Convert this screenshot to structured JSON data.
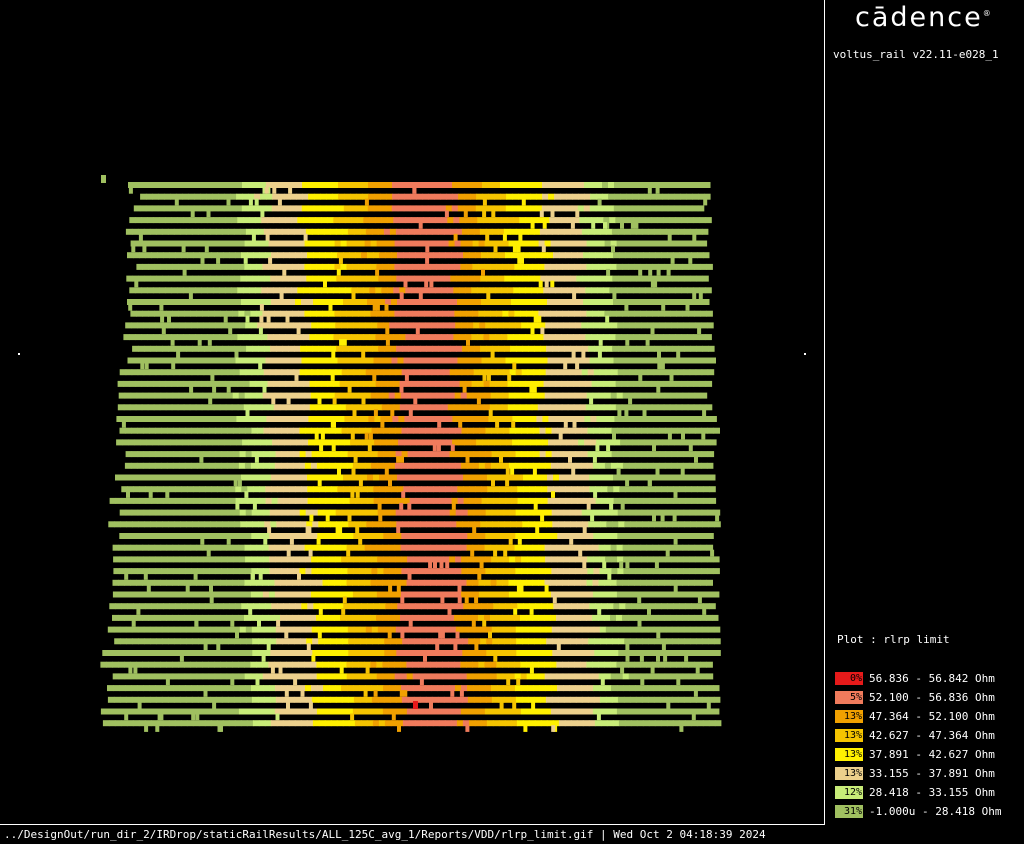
{
  "logo": {
    "text": "cādence",
    "mark": "®"
  },
  "version": "voltus_rail v22.11-e028_1",
  "plot_label": "Plot : rlrp limit",
  "legend": [
    {
      "percent": "0%",
      "range": "56.836 - 56.842 Ohm",
      "color": "#e61a1a"
    },
    {
      "percent": "5%",
      "range": "52.100 - 56.836 Ohm",
      "color": "#f07b5c"
    },
    {
      "percent": "13%",
      "range": "47.364 - 52.100 Ohm",
      "color": "#f0a000"
    },
    {
      "percent": "13%",
      "range": "42.627 - 47.364 Ohm",
      "color": "#f5c400"
    },
    {
      "percent": "13%",
      "range": "37.891 - 42.627 Ohm",
      "color": "#fff000"
    },
    {
      "percent": "13%",
      "range": "33.155 - 37.891 Ohm",
      "color": "#ecd08c"
    },
    {
      "percent": "12%",
      "range": "28.418 - 33.155 Ohm",
      "color": "#c8ec78"
    },
    {
      "percent": "31%",
      "range": "-1.000u - 28.418 Ohm",
      "color": "#a0c060"
    }
  ],
  "status": "../DesignOut/run_dir_2/IRDrop/staticRailResults/ALL_125C_avg_1/Reports/VDD/rlrp_limit.gif | Wed Oct  2 04:18:39 2024"
}
